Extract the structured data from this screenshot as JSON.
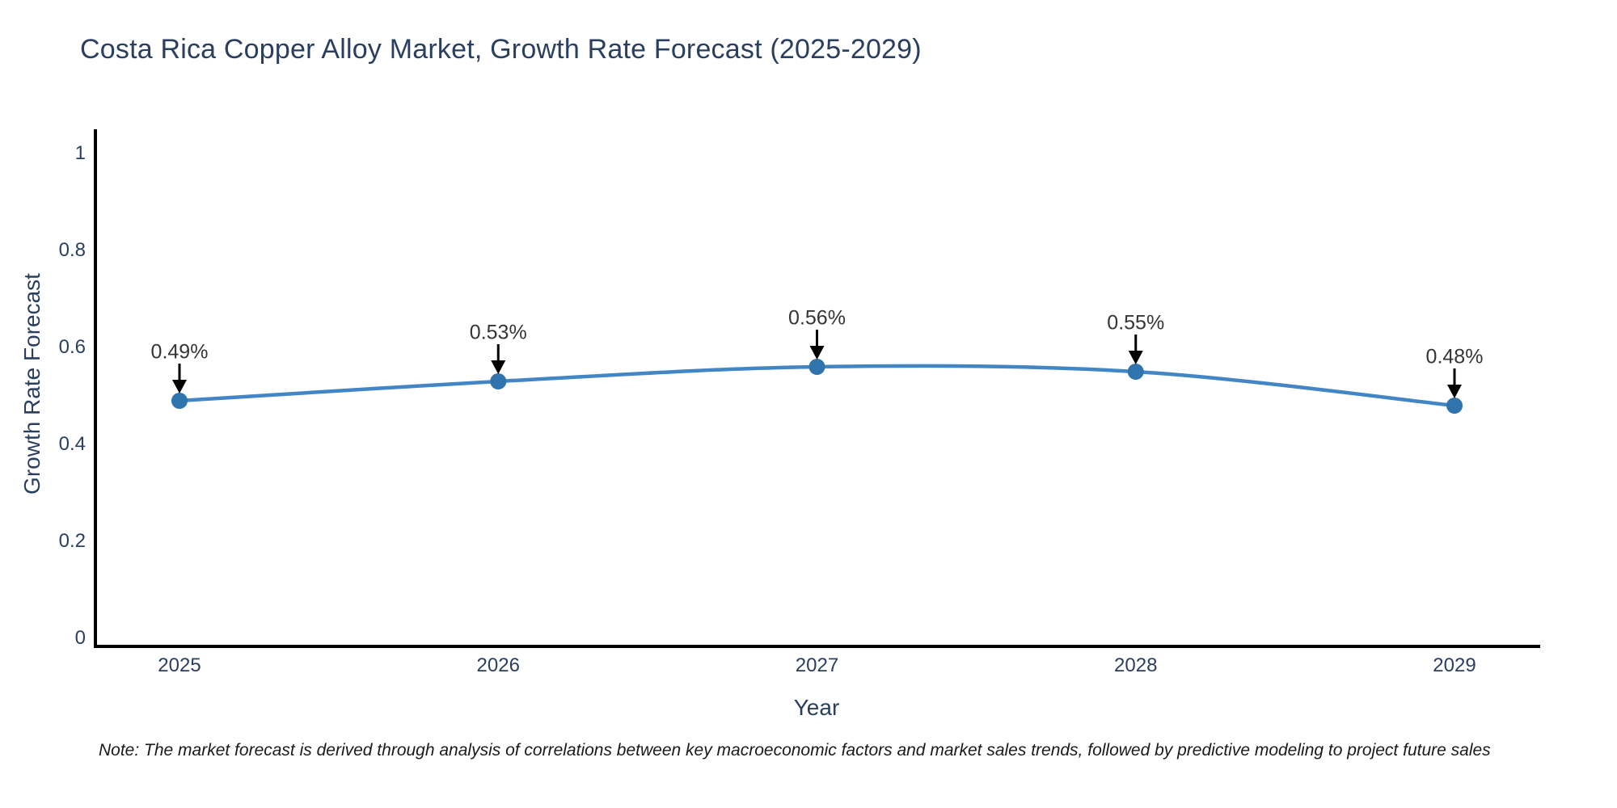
{
  "chart_data": {
    "type": "line",
    "title": "Costa Rica Copper Alloy Market, Growth Rate Forecast (2025-2029)",
    "xlabel": "Year",
    "ylabel": "Growth Rate Forecast",
    "x": [
      2025,
      2026,
      2027,
      2028,
      2029
    ],
    "y": [
      0.49,
      0.53,
      0.56,
      0.55,
      0.48
    ],
    "point_labels": [
      "0.49%",
      "0.53%",
      "0.56%",
      "0.55%",
      "0.48%"
    ],
    "xtick_labels": [
      "2025",
      "2026",
      "2027",
      "2028",
      "2029"
    ],
    "ytick_values": [
      0,
      0.2,
      0.4,
      0.6,
      0.8,
      1
    ],
    "ytick_labels": [
      "0",
      "0.2",
      "0.4",
      "0.6",
      "0.8",
      "1"
    ],
    "ylim": [
      0,
      1.05
    ],
    "grid": false,
    "legend": "none",
    "line_shape": "spline",
    "annotation_style": "down-arrow-to-point"
  },
  "note": "Note: The market forecast is derived through analysis of correlations between key macroeconomic factors and market sales trends, followed by predictive modeling to project future sales",
  "colors": {
    "title_text": "#2a3f5f",
    "axis_text": "#2a3f5f",
    "axis_line": "#000000",
    "series_line": "#4286c5",
    "marker": "#2f74ad",
    "annotation_text": "#353535",
    "arrow": "#000000",
    "note_text": "#1a1a1a",
    "background": "#ffffff"
  }
}
